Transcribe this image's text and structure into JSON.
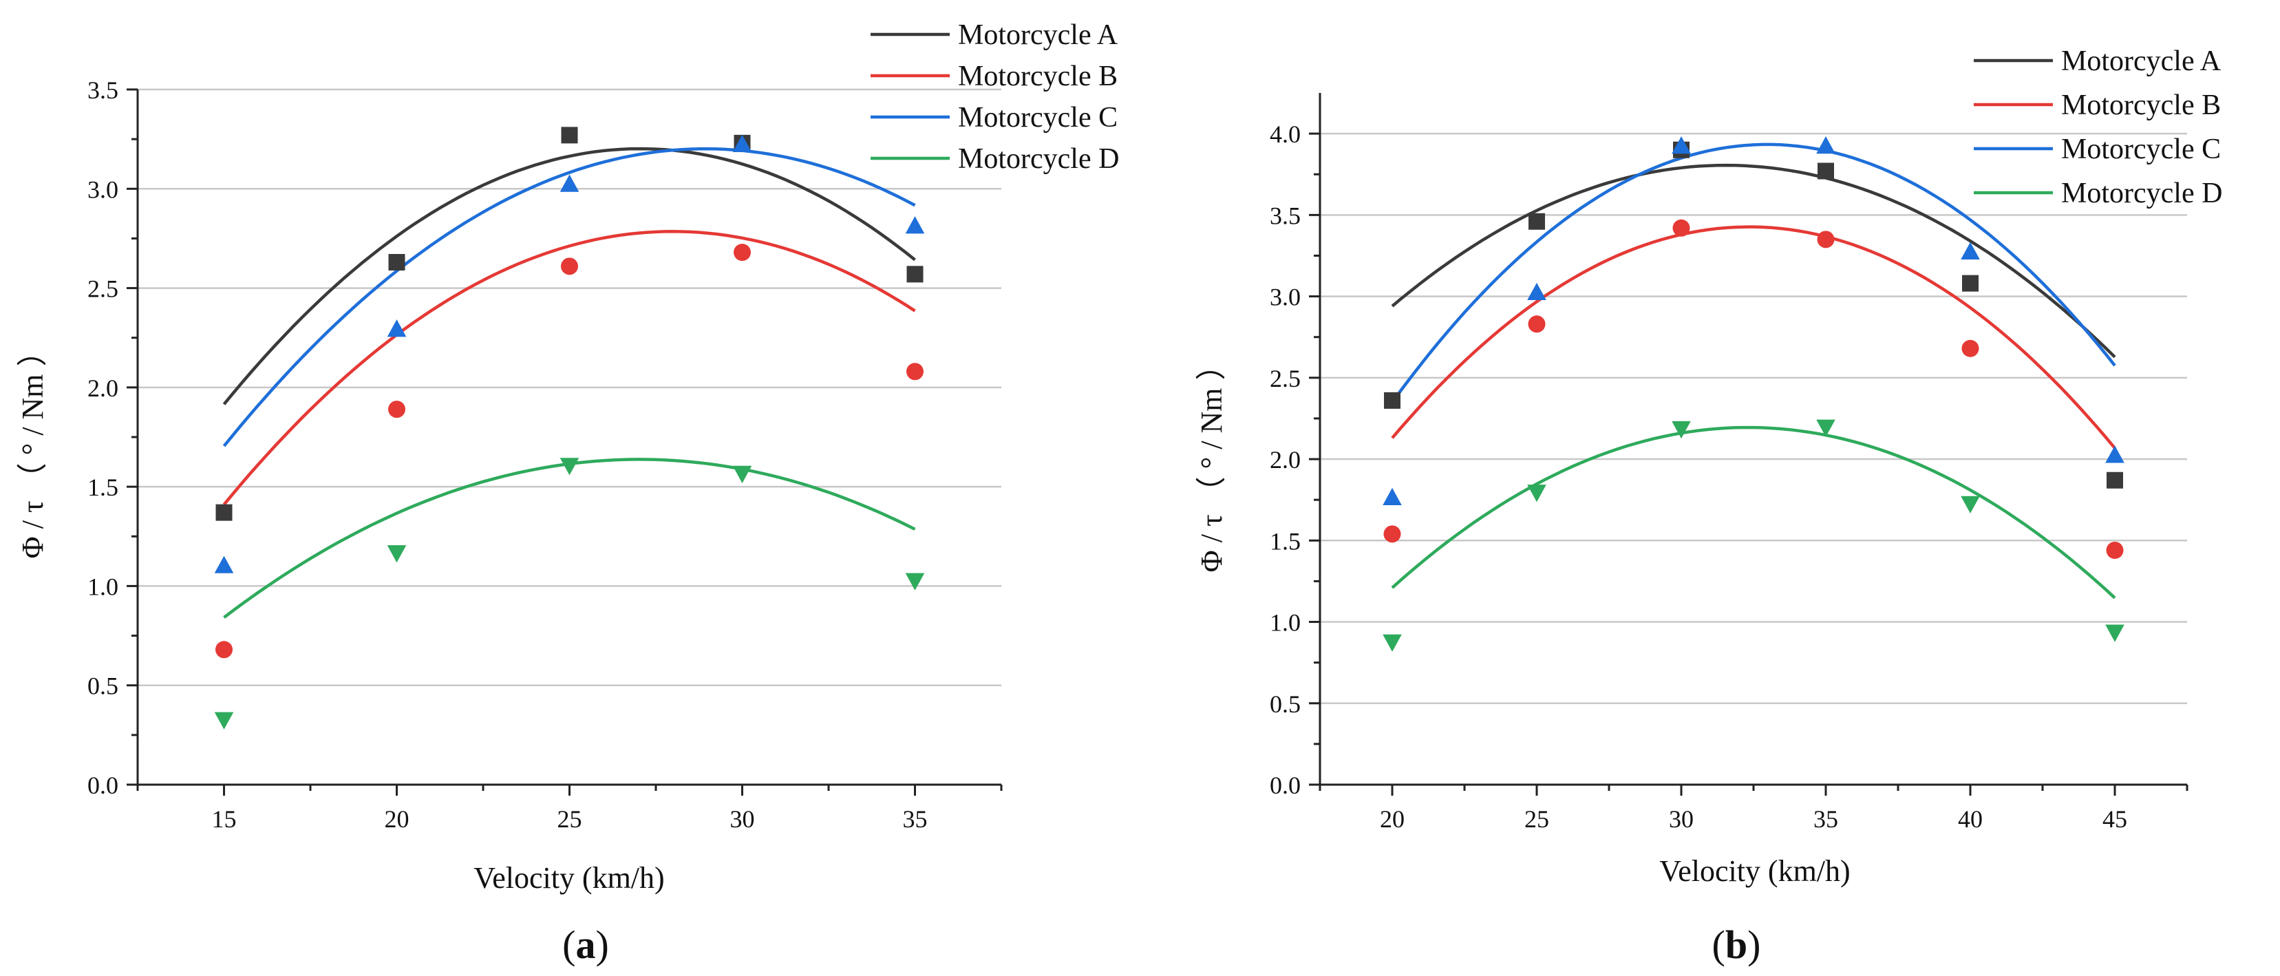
{
  "colors": {
    "Motorcycle A": "#3a3a3a",
    "Motorcycle B": "#e53935",
    "Motorcycle C": "#1e6fd9",
    "Motorcycle D": "#2eaa5c",
    "axis": "#222222",
    "grid": "#c8c8c8"
  },
  "chart_data": [
    {
      "type": "scatter",
      "caption_open": "(",
      "caption_letter": "a",
      "caption_close": ")",
      "xlabel": "Velocity (km/h)",
      "ylabel": "Φ / τ （ ° / Nm ）",
      "xlim": [
        12.5,
        37.5
      ],
      "ylim": [
        0.0,
        3.5
      ],
      "xticks": [
        15,
        20,
        25,
        30,
        35
      ],
      "xtick_labels": [
        "15",
        "20",
        "25",
        "30",
        "35"
      ],
      "yticks": [
        0.0,
        0.5,
        1.0,
        1.5,
        2.0,
        2.5,
        3.0,
        3.5
      ],
      "ytick_labels": [
        "0.0",
        "0.5",
        "1.0",
        "1.5",
        "2.0",
        "2.5",
        "3.0",
        "3.5"
      ],
      "grid": "horizontal",
      "legend_position": "top-right",
      "x": [
        15,
        20,
        25,
        30,
        35
      ],
      "series": [
        {
          "name": "Motorcycle A",
          "marker": "square",
          "values": [
            1.37,
            2.63,
            3.27,
            3.23,
            2.57
          ],
          "fit": [
            -3.28,
            0.4792,
            -0.008857
          ]
        },
        {
          "name": "Motorcycle B",
          "marker": "circle",
          "values": [
            0.68,
            1.89,
            2.61,
            2.68,
            2.08
          ],
          "fit": [
            -3.596,
            0.4559,
            -0.008143
          ]
        },
        {
          "name": "Motorcycle C",
          "marker": "triangle-up",
          "values": [
            1.1,
            2.29,
            3.02,
            3.22,
            2.81
          ],
          "fit": [
            -3.254,
            0.4463,
            -0.007714
          ]
        },
        {
          "name": "Motorcycle D",
          "marker": "triangle-down",
          "values": [
            0.33,
            1.17,
            1.61,
            1.57,
            1.03
          ],
          "fit": [
            -2.386,
            0.2979,
            -0.005514
          ]
        }
      ]
    },
    {
      "type": "scatter",
      "caption_open": "(",
      "caption_letter": "b",
      "caption_close": ")",
      "xlabel": "Velocity (km/h)",
      "ylabel": "Φ / τ （ ° / Nm ）",
      "xlim": [
        17.5,
        47.5
      ],
      "ylim": [
        0.0,
        4.25
      ],
      "xticks": [
        20,
        25,
        30,
        35,
        40,
        45
      ],
      "xtick_labels": [
        "20",
        "25",
        "30",
        "35",
        "40",
        "45"
      ],
      "yticks": [
        0.0,
        0.5,
        1.0,
        1.5,
        2.0,
        2.5,
        3.0,
        3.5,
        4.0
      ],
      "ytick_labels": [
        "0.0",
        "0.5",
        "1.0",
        "1.5",
        "2.0",
        "2.5",
        "3.0",
        "3.5",
        "4.0"
      ],
      "grid": "horizontal",
      "legend_position": "top-right",
      "x": [
        20,
        25,
        30,
        35,
        40,
        45
      ],
      "series": [
        {
          "name": "Motorcycle A",
          "marker": "square",
          "values": [
            2.36,
            3.46,
            3.9,
            3.77,
            3.08,
            1.87
          ],
          "fit": [
            -2.66,
            0.41,
            -0.0065
          ]
        },
        {
          "name": "Motorcycle B",
          "marker": "circle",
          "values": [
            1.54,
            2.83,
            3.42,
            3.35,
            2.68,
            1.44
          ],
          "fit": [
            -5.47,
            0.55,
            -0.0085
          ]
        },
        {
          "name": "Motorcycle C",
          "marker": "triangle-up",
          "values": [
            1.76,
            3.02,
            3.92,
            3.92,
            3.27,
            2.02
          ],
          "fit": [
            -6.29,
            0.62,
            -0.0094
          ]
        },
        {
          "name": "Motorcycle D",
          "marker": "triangle-down",
          "values": [
            0.88,
            1.8,
            2.19,
            2.2,
            1.73,
            0.94
          ],
          "fit": [
            -4.59,
            0.42,
            -0.0065
          ]
        }
      ]
    }
  ]
}
